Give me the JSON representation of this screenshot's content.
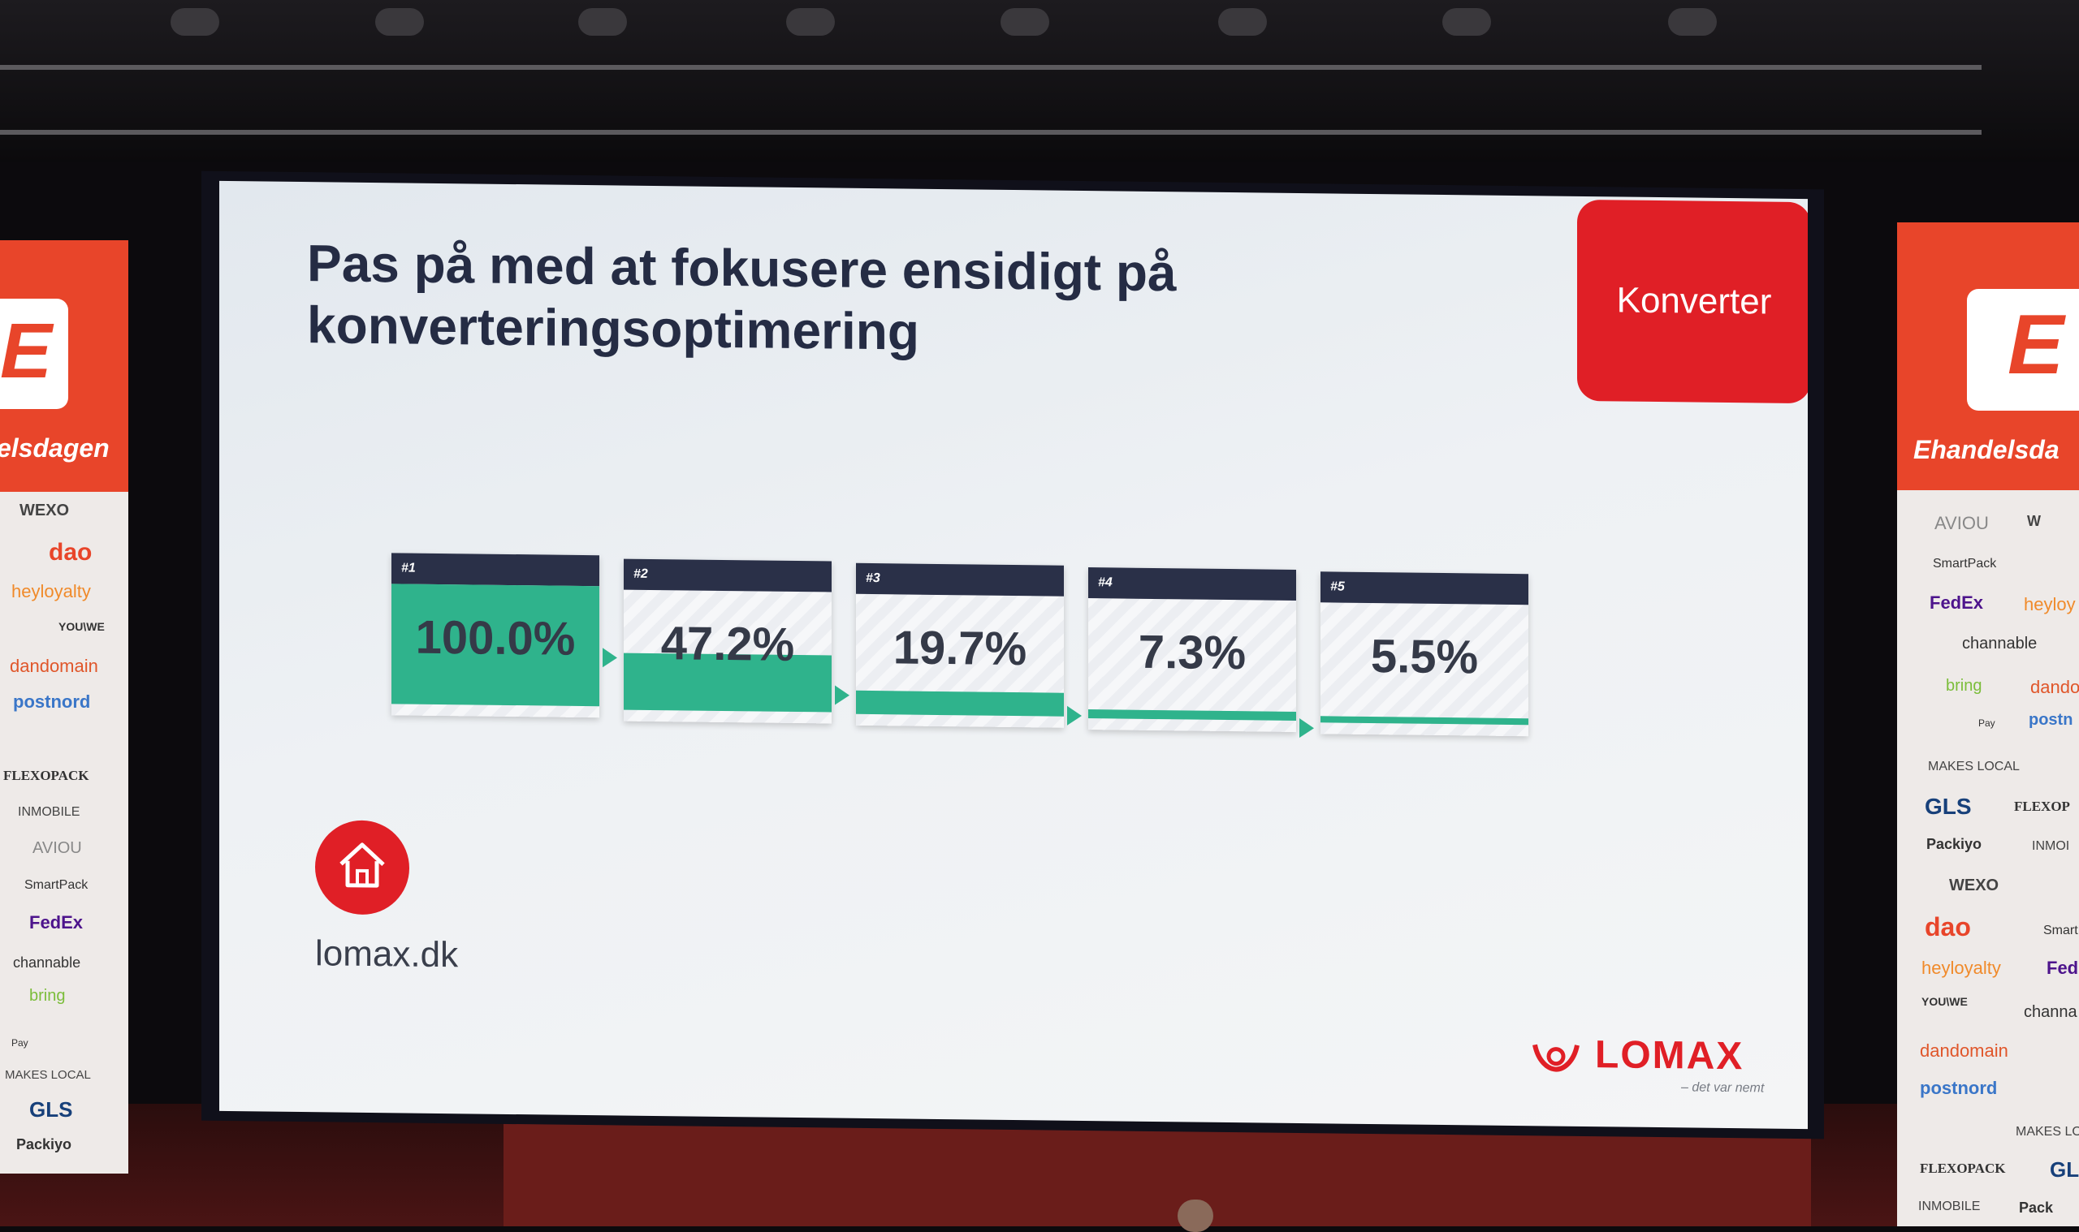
{
  "slide": {
    "title_line1": "Pas på med at fokusere ensidigt på",
    "title_line2": "konverteringsoptimering",
    "cta_label": "Konverter",
    "funnel": [
      {
        "step": "#1",
        "value_label": "100.0%",
        "value": 100.0
      },
      {
        "step": "#2",
        "value_label": "47.2%",
        "value": 47.2
      },
      {
        "step": "#3",
        "value_label": "19.7%",
        "value": 19.7
      },
      {
        "step": "#4",
        "value_label": "7.3%",
        "value": 7.3
      },
      {
        "step": "#5",
        "value_label": "5.5%",
        "value": 5.5
      }
    ],
    "home_icon": "home-icon",
    "url": "lomax.dk",
    "brand": "LOMAX",
    "brand_tagline": "– det var nemt",
    "colors": {
      "accent": "#e01f26",
      "fill": "#2fb38c",
      "header": "#2a3048",
      "title": "#252c44"
    }
  },
  "banner_left": {
    "name": "elsdagen",
    "sponsors": [
      "WEXO",
      "dao",
      "heyloyalty",
      "YOU\\WE",
      "dandomain",
      "postnord",
      "FLEXOPACK",
      "INMOBILE",
      "AVIOU",
      "SmartPack",
      "FedEx",
      "channable",
      "bring",
      "Pay",
      "MAKES LOCAL",
      "GLS",
      "Packiyo"
    ]
  },
  "banner_right": {
    "name": "Ehandelsda",
    "sponsors": [
      "AVIOU",
      "SmartPack",
      "FedEx",
      "heyloy",
      "channable",
      "bring",
      "dandor",
      "Pay",
      "postn",
      "MAKES LOCAL",
      "GLS",
      "FLEXOP",
      "Packiyo",
      "INMOI",
      "WEXO",
      "dao",
      "Smart",
      "heyloyalty",
      "Fed",
      "YOU\\WE",
      "channa",
      "dandomain",
      "postnord",
      "MAKES LO",
      "FLEXOPACK",
      "GL",
      "INMOBILE",
      "Pack"
    ]
  }
}
